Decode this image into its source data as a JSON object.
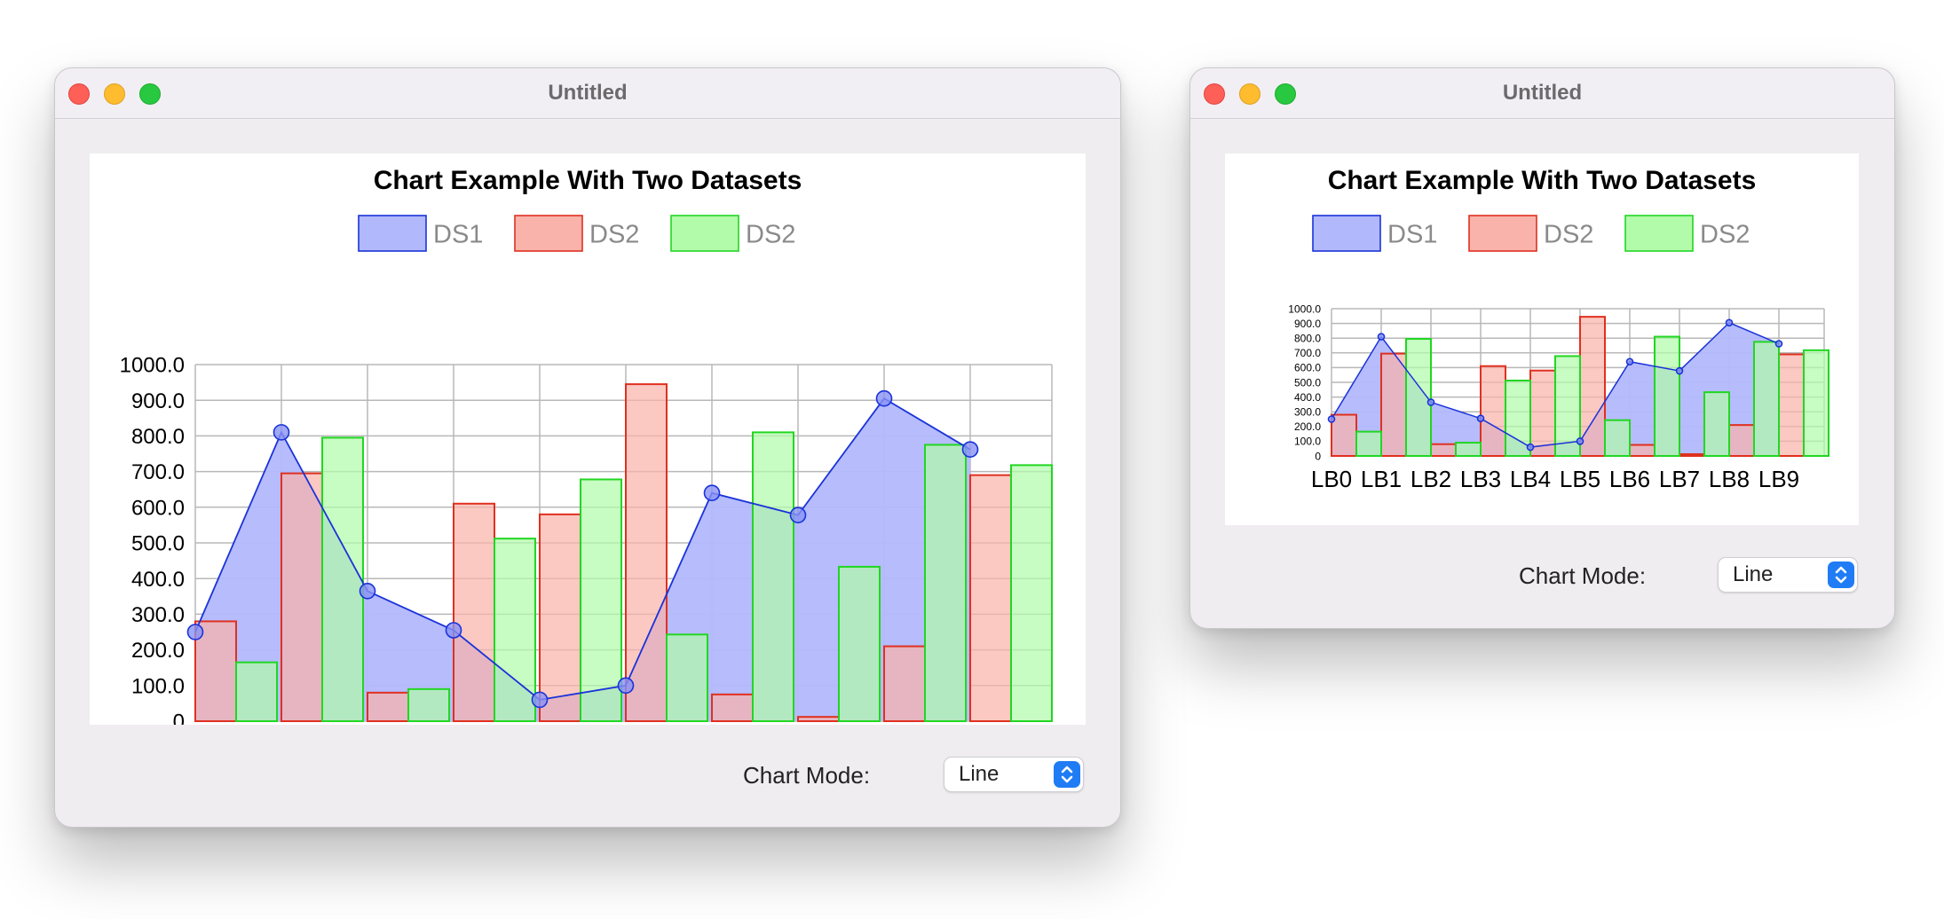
{
  "windows": [
    {
      "title": "Untitled",
      "chart_mode_label": "Chart Mode:",
      "chart_mode_value": "Line",
      "chart_style": "large"
    },
    {
      "title": "Untitled",
      "chart_mode_label": "Chart Mode:",
      "chart_mode_value": "Line",
      "chart_style": "small"
    }
  ],
  "icons": {
    "close": "close-button",
    "minimize": "minimize-button",
    "zoom": "zoom-button",
    "select_indicator": "chevron-up-down-icon"
  },
  "chart_data": {
    "type": "bar",
    "title": "Chart Example With Two Datasets",
    "categories": [
      "LB0",
      "LB1",
      "LB2",
      "LB3",
      "LB4",
      "LB5",
      "LB6",
      "LB7",
      "LB8",
      "LB9"
    ],
    "ylim": [
      0,
      1000
    ],
    "yticks": [
      0,
      100,
      200,
      300,
      400,
      500,
      600,
      700,
      800,
      900,
      1000
    ],
    "ytick_labels": [
      "0",
      "100.0",
      "200.0",
      "300.0",
      "400.0",
      "500.0",
      "600.0",
      "700.0",
      "800.0",
      "900.0",
      "1000.0"
    ],
    "grid": true,
    "legend_position": "top",
    "series": [
      {
        "name": "DS1",
        "kind": "area-line",
        "fill": "#b2b8fc",
        "stroke": "#1a33d9",
        "values": [
          250,
          810,
          365,
          255,
          60,
          100,
          640,
          578,
          905,
          762
        ]
      },
      {
        "name": "DS2",
        "kind": "bar",
        "fill": "#f9b3aa",
        "stroke": "#e03020",
        "values": [
          280,
          695,
          80,
          610,
          580,
          945,
          75,
          12,
          210,
          690
        ]
      },
      {
        "name": "DS2",
        "kind": "bar",
        "fill": "#b2fbaa",
        "stroke": "#22d622",
        "values": [
          165,
          795,
          90,
          512,
          678,
          243,
          810,
          433,
          775,
          718
        ]
      }
    ]
  }
}
